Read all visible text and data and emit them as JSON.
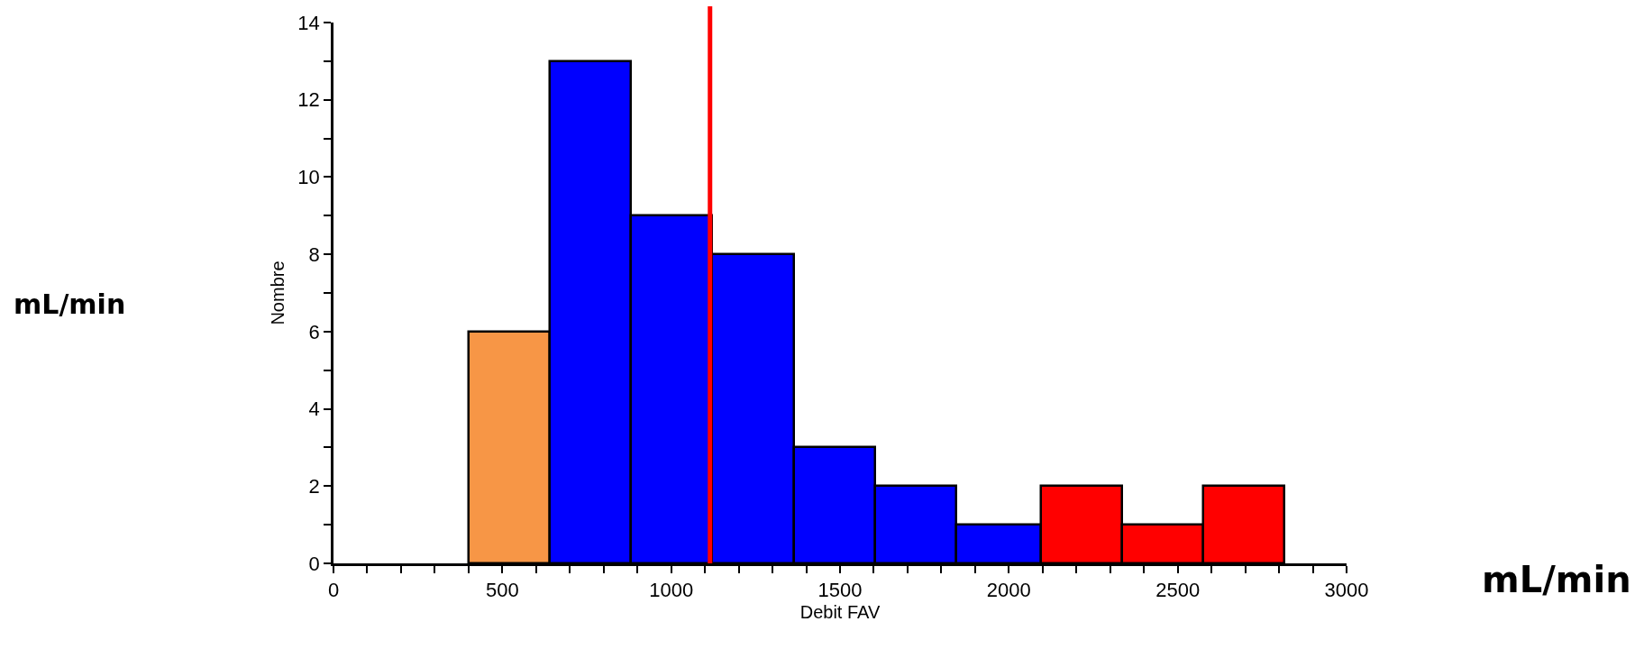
{
  "chart_data": {
    "type": "histogram",
    "xlabel": "Debit FAV",
    "ylabel": "Nombre",
    "bins": [
      400,
      640,
      880,
      1120,
      1365,
      1605,
      1845,
      2095,
      2335,
      2575,
      2815
    ],
    "values": [
      6,
      13,
      9,
      8,
      3,
      2,
      1,
      2,
      1,
      2
    ],
    "colors": [
      "#f79646",
      "#0000ff",
      "#0000ff",
      "#0000ff",
      "#0000ff",
      "#0000ff",
      "#0000ff",
      "#ff0000",
      "#ff0000",
      "#ff0000"
    ],
    "xlim": [
      0,
      3000
    ],
    "xticks": [
      0,
      {
        "value": 100,
        "label": null
      },
      {
        "value": 200,
        "label": null
      },
      {
        "value": 300,
        "label": null
      },
      {
        "value": 400,
        "label": null
      },
      500,
      {
        "value": 600,
        "label": null
      },
      {
        "value": 700,
        "label": null
      },
      {
        "value": 800,
        "label": null
      },
      {
        "value": 900,
        "label": null
      },
      1000,
      {
        "value": 1100,
        "label": null
      },
      {
        "value": 1200,
        "label": null
      },
      {
        "value": 1300,
        "label": null
      },
      {
        "value": 1400,
        "label": null
      },
      1500,
      {
        "value": 1600,
        "label": null
      },
      {
        "value": 1700,
        "label": null
      },
      {
        "value": 1800,
        "label": null
      },
      {
        "value": 1900,
        "label": null
      },
      2000,
      {
        "value": 2100,
        "label": null
      },
      {
        "value": 2200,
        "label": null
      },
      {
        "value": 2300,
        "label": null
      },
      {
        "value": 2400,
        "label": null
      },
      2500,
      {
        "value": 2600,
        "label": null
      },
      {
        "value": 2700,
        "label": null
      },
      {
        "value": 2800,
        "label": null
      },
      {
        "value": 2900,
        "label": null
      },
      3000
    ],
    "ylim": [
      0,
      14
    ],
    "yticks": [
      0,
      {
        "value": 1,
        "label": null
      },
      2,
      {
        "value": 3,
        "label": null
      },
      4,
      {
        "value": 5,
        "label": null
      },
      6,
      {
        "value": 7,
        "label": null
      },
      8,
      {
        "value": 9,
        "label": null
      },
      10,
      {
        "value": 11,
        "label": null
      },
      12,
      {
        "value": 13,
        "label": null
      },
      14
    ],
    "ref_lines": [
      {
        "axis": "x",
        "value": 1115,
        "color": "#ff0000"
      }
    ],
    "annotations": [
      "mL/min",
      "mL/min"
    ]
  }
}
